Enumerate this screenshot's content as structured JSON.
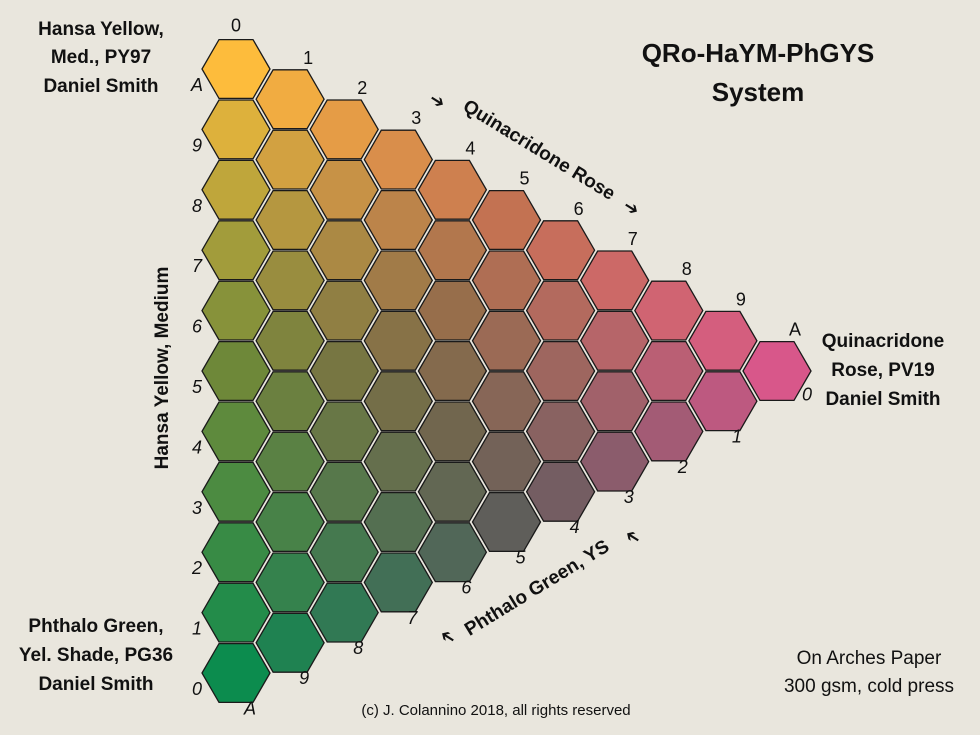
{
  "title": [
    "QRo-HaYM-PhGYS",
    "System"
  ],
  "corner_labels": {
    "top": [
      "Hansa Yellow,",
      "Med., PY97",
      "Daniel Smith"
    ],
    "right": [
      "Quinacridone",
      "Rose, PV19",
      "Daniel Smith"
    ],
    "bottom": [
      "Phthalo Green,",
      "Yel. Shade, PG36",
      "Daniel Smith"
    ]
  },
  "edge_labels": {
    "left": "Hansa Yellow, Medium",
    "top": "Quinacridone Rose",
    "bottom": "Phthalo Green, YS"
  },
  "top_edge_numbers": [
    "0",
    "1",
    "2",
    "3",
    "4",
    "5",
    "6",
    "7",
    "8",
    "9",
    "A"
  ],
  "left_edge_numbers": [
    "A",
    "9",
    "8",
    "7",
    "6",
    "5",
    "4",
    "3",
    "2",
    "1",
    "0"
  ],
  "bottom_edge_numbers": [
    "0",
    "1",
    "2",
    "3",
    "4",
    "5",
    "6",
    "7",
    "8",
    "9",
    "A"
  ],
  "paper_note": [
    "On Arches Paper",
    "300 gsm, cold press"
  ],
  "copyright": "(c) J. Colannino 2018, all rights reserved",
  "colors": {
    "background": "#e9e6dd",
    "yellow": "#fdbc3c",
    "rose": "#d8578a",
    "green": "#0c8c4e",
    "hex_stroke": "#1a1a1a"
  }
}
